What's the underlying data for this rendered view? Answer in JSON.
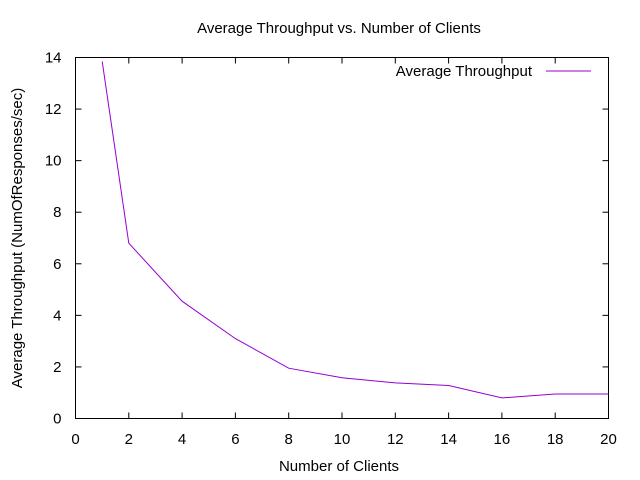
{
  "chart_data": {
    "type": "line",
    "title": "Average Throughput vs. Number of Clients",
    "xlabel": "Number of Clients",
    "ylabel": "Average Throughput (NumOfResponses/sec)",
    "xlim": [
      0,
      20
    ],
    "ylim": [
      0,
      14
    ],
    "xticks": [
      0,
      2,
      4,
      6,
      8,
      10,
      12,
      14,
      16,
      18,
      20
    ],
    "yticks": [
      0,
      2,
      4,
      6,
      8,
      10,
      12,
      14
    ],
    "grid": false,
    "legend_position": "top-right",
    "series": [
      {
        "name": "Average Throughput",
        "color": "#9400d3",
        "x": [
          1,
          2,
          4,
          6,
          8,
          10,
          12,
          14,
          16,
          18,
          20
        ],
        "y": [
          13.85,
          6.8,
          4.55,
          3.1,
          1.95,
          1.58,
          1.38,
          1.28,
          0.8,
          0.95,
          0.95
        ]
      }
    ]
  }
}
